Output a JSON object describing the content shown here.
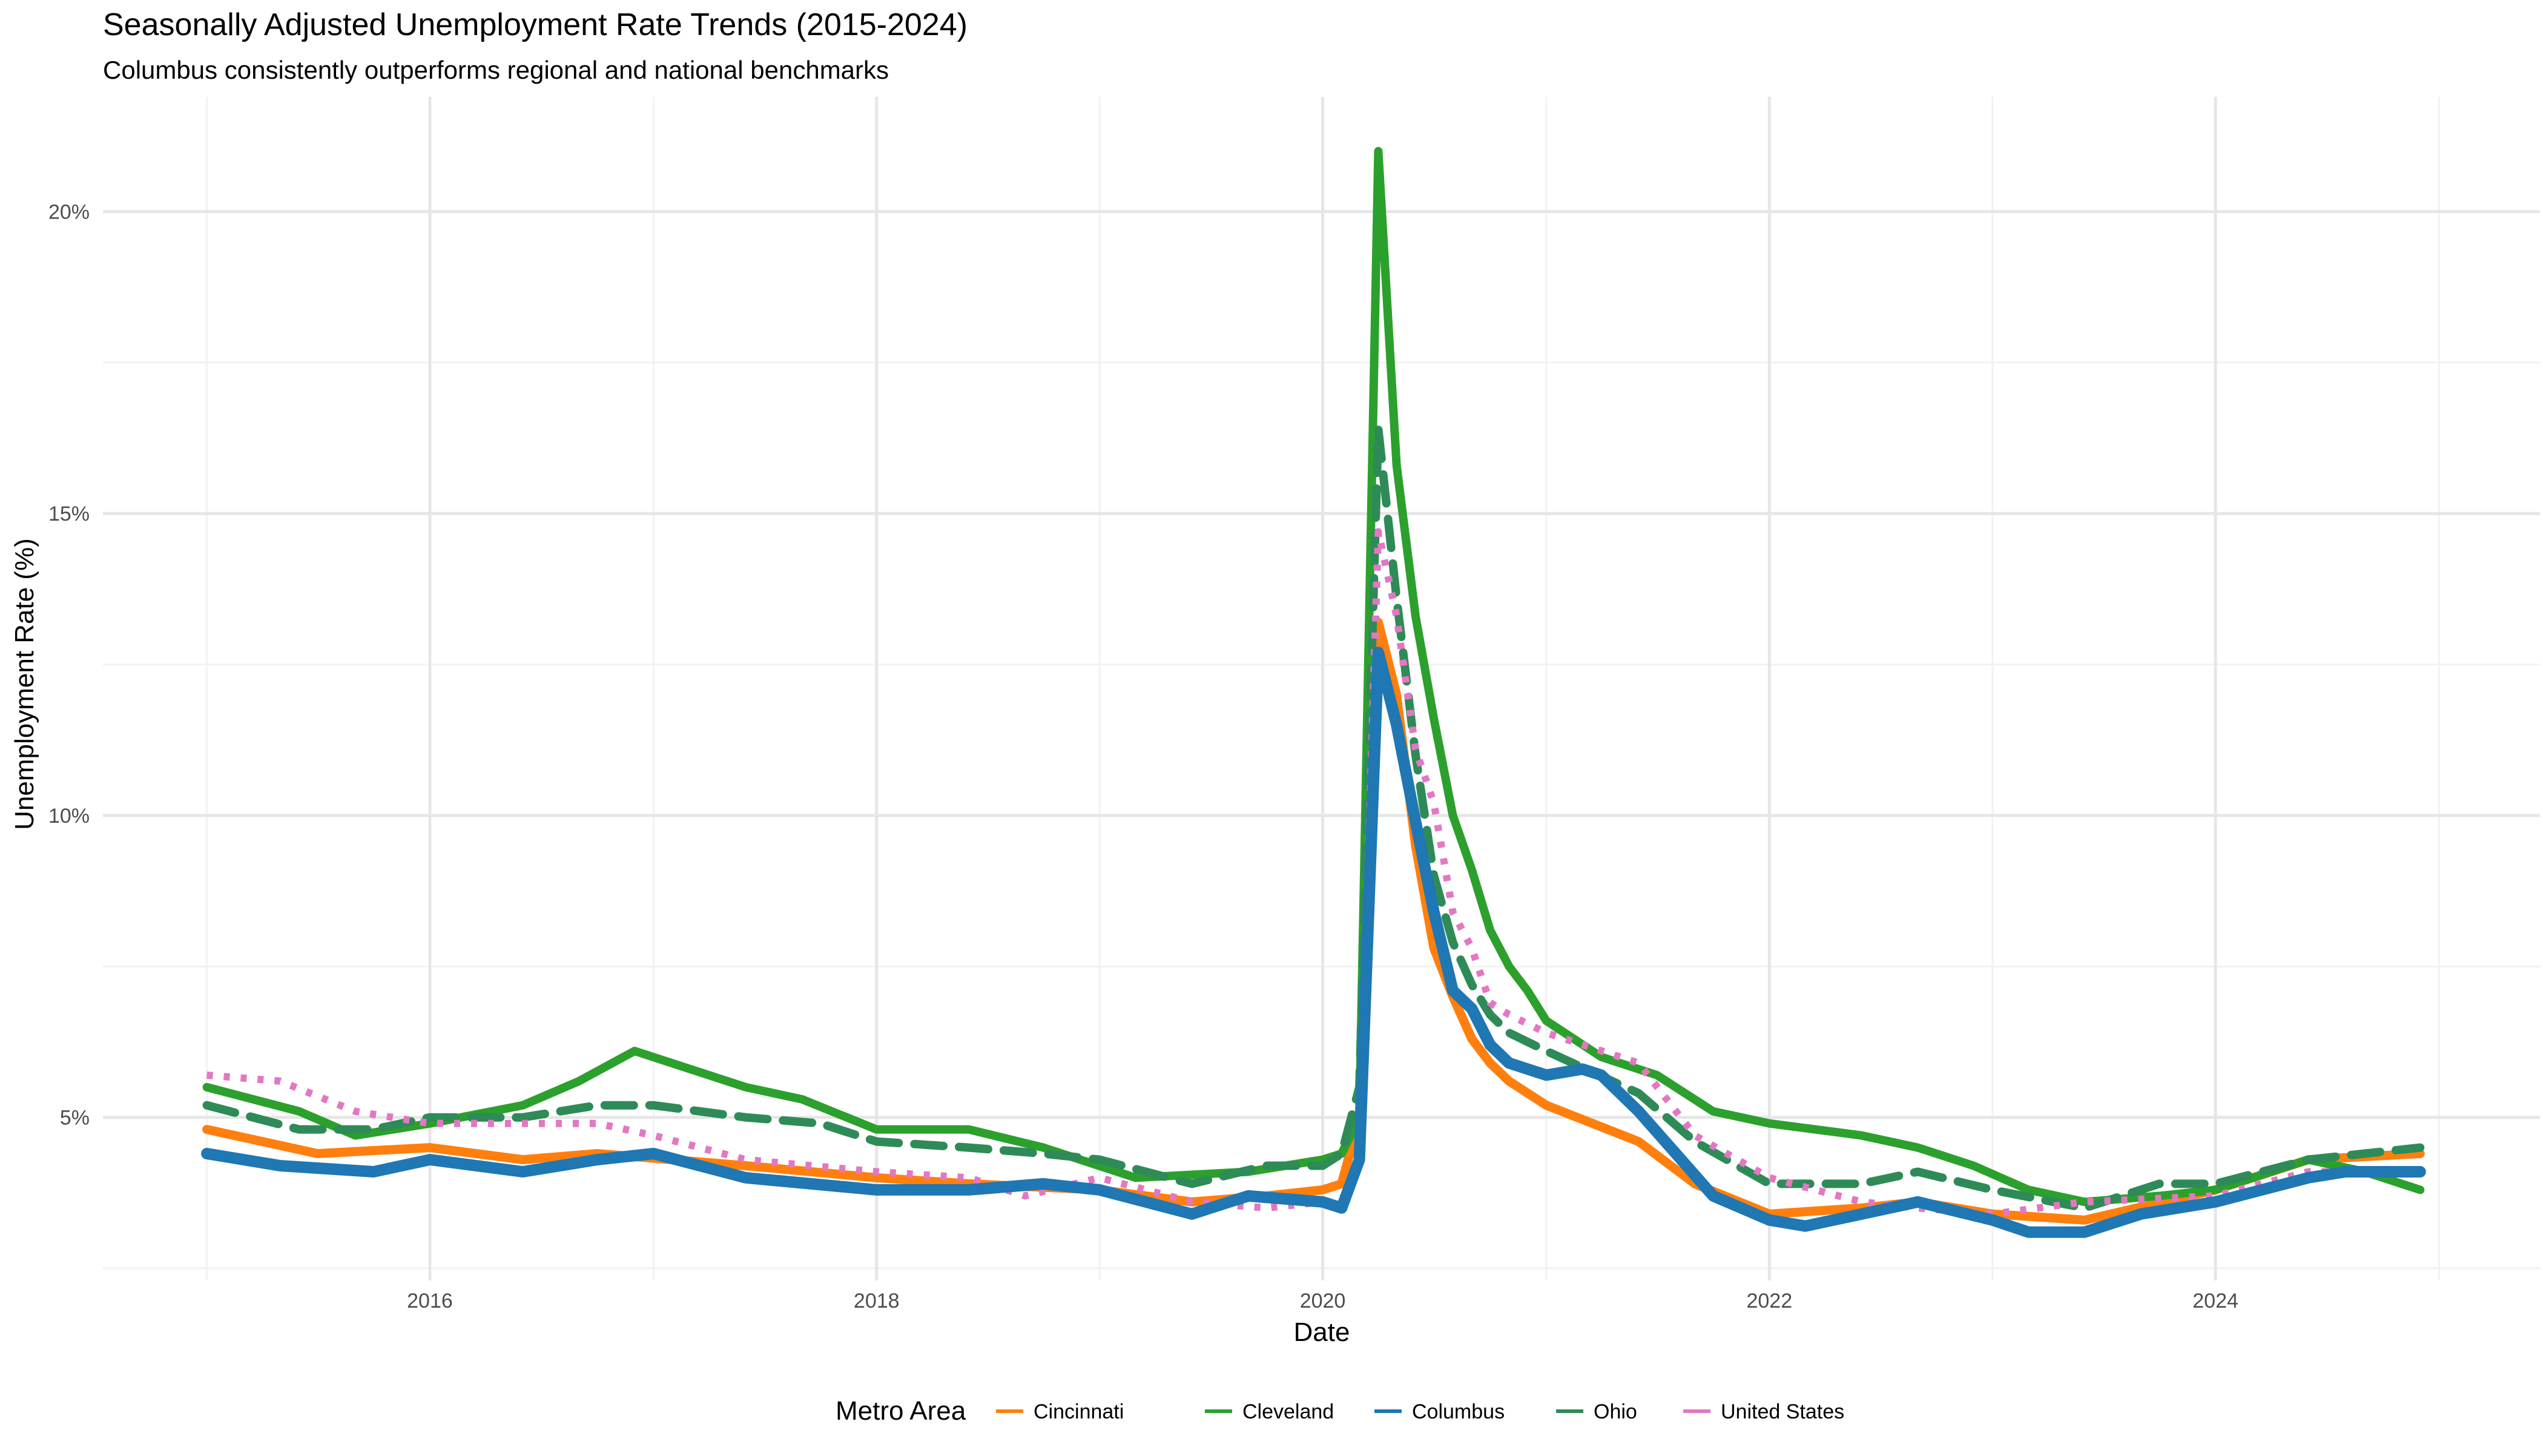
{
  "chart_data": {
    "type": "line",
    "title": "Seasonally Adjusted Unemployment Rate Trends (2015-2024)",
    "subtitle": "Columbus consistently outperforms regional and national benchmarks",
    "xlabel": "Date",
    "ylabel": "Unemployment Rate (%)",
    "x_ticks": [
      "2016",
      "2018",
      "2020",
      "2022",
      "2024"
    ],
    "x_tick_dates": [
      "2016-01-01",
      "2018-01-01",
      "2020-01-01",
      "2022-01-01",
      "2024-01-01"
    ],
    "y_ticks": [
      5,
      10,
      15,
      20
    ],
    "y_tick_labels": [
      "5%",
      "10%",
      "15%",
      "20%"
    ],
    "xlim": [
      "2014-07-15",
      "2025-06-15"
    ],
    "ylim": [
      2.3,
      21.9
    ],
    "grid": true,
    "legend": {
      "title": "Metro Area",
      "position": "bottom"
    },
    "series": [
      {
        "name": "Cincinnati",
        "color": "#FF7F0E",
        "dash": "solid",
        "points": [
          [
            "2015-01-01",
            4.8
          ],
          [
            "2015-07-01",
            4.4
          ],
          [
            "2016-01-01",
            4.5
          ],
          [
            "2016-06-01",
            4.3
          ],
          [
            "2016-10-01",
            4.4
          ],
          [
            "2017-06-01",
            4.2
          ],
          [
            "2018-01-01",
            4.0
          ],
          [
            "2018-06-01",
            3.9
          ],
          [
            "2019-01-01",
            3.8
          ],
          [
            "2019-06-01",
            3.6
          ],
          [
            "2019-10-01",
            3.7
          ],
          [
            "2020-01-01",
            3.8
          ],
          [
            "2020-02-01",
            3.9
          ],
          [
            "2020-03-01",
            5.0
          ],
          [
            "2020-04-01",
            13.2
          ],
          [
            "2020-05-01",
            12.0
          ],
          [
            "2020-06-01",
            9.5
          ],
          [
            "2020-07-01",
            7.8
          ],
          [
            "2020-08-01",
            7.0
          ],
          [
            "2020-09-01",
            6.3
          ],
          [
            "2020-10-01",
            5.9
          ],
          [
            "2020-11-01",
            5.6
          ],
          [
            "2021-01-01",
            5.2
          ],
          [
            "2021-06-01",
            4.6
          ],
          [
            "2021-09-01",
            3.9
          ],
          [
            "2022-01-01",
            3.4
          ],
          [
            "2022-06-01",
            3.5
          ],
          [
            "2022-09-01",
            3.6
          ],
          [
            "2023-01-01",
            3.4
          ],
          [
            "2023-06-01",
            3.3
          ],
          [
            "2024-01-01",
            3.8
          ],
          [
            "2024-06-01",
            4.3
          ],
          [
            "2024-12-01",
            4.4
          ]
        ]
      },
      {
        "name": "Cleveland",
        "color": "#2CA02C",
        "dash": "solid",
        "points": [
          [
            "2015-01-01",
            5.5
          ],
          [
            "2015-06-01",
            5.1
          ],
          [
            "2015-09-01",
            4.7
          ],
          [
            "2016-01-01",
            4.9
          ],
          [
            "2016-06-01",
            5.2
          ],
          [
            "2016-09-01",
            5.6
          ],
          [
            "2016-12-01",
            6.1
          ],
          [
            "2017-06-01",
            5.5
          ],
          [
            "2017-09-01",
            5.3
          ],
          [
            "2018-01-01",
            4.8
          ],
          [
            "2018-06-01",
            4.8
          ],
          [
            "2018-10-01",
            4.5
          ],
          [
            "2019-03-01",
            4.0
          ],
          [
            "2019-09-01",
            4.1
          ],
          [
            "2020-01-01",
            4.3
          ],
          [
            "2020-02-01",
            4.4
          ],
          [
            "2020-03-01",
            5.0
          ],
          [
            "2020-04-01",
            21.0
          ],
          [
            "2020-05-01",
            15.8
          ],
          [
            "2020-06-01",
            13.3
          ],
          [
            "2020-07-01",
            11.6
          ],
          [
            "2020-08-01",
            10.0
          ],
          [
            "2020-09-01",
            9.1
          ],
          [
            "2020-10-01",
            8.1
          ],
          [
            "2020-11-01",
            7.5
          ],
          [
            "2020-12-01",
            7.1
          ],
          [
            "2021-01-01",
            6.6
          ],
          [
            "2021-04-01",
            6.0
          ],
          [
            "2021-07-01",
            5.7
          ],
          [
            "2021-10-01",
            5.1
          ],
          [
            "2022-01-01",
            4.9
          ],
          [
            "2022-06-01",
            4.7
          ],
          [
            "2022-09-01",
            4.5
          ],
          [
            "2022-12-01",
            4.2
          ],
          [
            "2023-03-01",
            3.8
          ],
          [
            "2023-06-01",
            3.6
          ],
          [
            "2023-10-01",
            3.7
          ],
          [
            "2024-01-01",
            3.8
          ],
          [
            "2024-06-01",
            4.3
          ],
          [
            "2024-09-01",
            4.1
          ],
          [
            "2024-12-01",
            3.8
          ]
        ]
      },
      {
        "name": "Columbus",
        "color": "#1F77B4",
        "dash": "solid",
        "points": [
          [
            "2015-01-01",
            4.4
          ],
          [
            "2015-05-01",
            4.2
          ],
          [
            "2015-10-01",
            4.1
          ],
          [
            "2016-01-01",
            4.3
          ],
          [
            "2016-06-01",
            4.1
          ],
          [
            "2016-10-01",
            4.3
          ],
          [
            "2017-01-01",
            4.4
          ],
          [
            "2017-06-01",
            4.0
          ],
          [
            "2018-01-01",
            3.8
          ],
          [
            "2018-06-01",
            3.8
          ],
          [
            "2018-10-01",
            3.9
          ],
          [
            "2019-01-01",
            3.8
          ],
          [
            "2019-06-01",
            3.4
          ],
          [
            "2019-09-01",
            3.7
          ],
          [
            "2020-01-01",
            3.6
          ],
          [
            "2020-02-01",
            3.5
          ],
          [
            "2020-03-01",
            4.3
          ],
          [
            "2020-04-01",
            12.7
          ],
          [
            "2020-05-01",
            11.5
          ],
          [
            "2020-06-01",
            9.9
          ],
          [
            "2020-07-01",
            8.4
          ],
          [
            "2020-08-01",
            7.1
          ],
          [
            "2020-09-01",
            6.8
          ],
          [
            "2020-10-01",
            6.2
          ],
          [
            "2020-11-01",
            5.9
          ],
          [
            "2021-01-01",
            5.7
          ],
          [
            "2021-03-01",
            5.8
          ],
          [
            "2021-04-01",
            5.7
          ],
          [
            "2021-06-01",
            5.1
          ],
          [
            "2021-08-01",
            4.4
          ],
          [
            "2021-10-01",
            3.7
          ],
          [
            "2022-01-01",
            3.3
          ],
          [
            "2022-03-01",
            3.2
          ],
          [
            "2022-06-01",
            3.4
          ],
          [
            "2022-09-01",
            3.6
          ],
          [
            "2023-01-01",
            3.3
          ],
          [
            "2023-03-01",
            3.1
          ],
          [
            "2023-06-01",
            3.1
          ],
          [
            "2023-09-01",
            3.4
          ],
          [
            "2024-01-01",
            3.6
          ],
          [
            "2024-06-01",
            4.0
          ],
          [
            "2024-08-01",
            4.1
          ],
          [
            "2024-12-01",
            4.1
          ]
        ]
      },
      {
        "name": "Ohio",
        "color": "#2E8B57",
        "dash": "dashed",
        "points": [
          [
            "2015-01-01",
            5.2
          ],
          [
            "2015-06-01",
            4.8
          ],
          [
            "2015-10-01",
            4.8
          ],
          [
            "2016-01-01",
            5.0
          ],
          [
            "2016-06-01",
            5.0
          ],
          [
            "2016-10-01",
            5.2
          ],
          [
            "2017-01-01",
            5.2
          ],
          [
            "2017-06-01",
            5.0
          ],
          [
            "2017-10-01",
            4.9
          ],
          [
            "2018-01-01",
            4.6
          ],
          [
            "2018-06-01",
            4.5
          ],
          [
            "2018-10-01",
            4.4
          ],
          [
            "2019-01-01",
            4.3
          ],
          [
            "2019-06-01",
            3.9
          ],
          [
            "2019-10-01",
            4.2
          ],
          [
            "2020-01-01",
            4.2
          ],
          [
            "2020-02-01",
            4.4
          ],
          [
            "2020-03-01",
            5.5
          ],
          [
            "2020-04-01",
            16.4
          ],
          [
            "2020-05-01",
            13.6
          ],
          [
            "2020-06-01",
            11.0
          ],
          [
            "2020-07-01",
            9.0
          ],
          [
            "2020-08-01",
            7.9
          ],
          [
            "2020-09-01",
            7.2
          ],
          [
            "2020-10-01",
            6.7
          ],
          [
            "2020-11-01",
            6.4
          ],
          [
            "2021-01-01",
            6.1
          ],
          [
            "2021-06-01",
            5.4
          ],
          [
            "2021-09-01",
            4.6
          ],
          [
            "2022-01-01",
            3.9
          ],
          [
            "2022-06-01",
            3.9
          ],
          [
            "2022-09-01",
            4.1
          ],
          [
            "2023-01-01",
            3.8
          ],
          [
            "2023-06-01",
            3.5
          ],
          [
            "2023-10-01",
            3.9
          ],
          [
            "2024-01-01",
            3.9
          ],
          [
            "2024-06-01",
            4.3
          ],
          [
            "2024-12-01",
            4.5
          ]
        ]
      },
      {
        "name": "United States",
        "color": "#E377C2",
        "dash": "dotted",
        "points": [
          [
            "2015-01-01",
            5.7
          ],
          [
            "2015-05-01",
            5.6
          ],
          [
            "2015-09-01",
            5.1
          ],
          [
            "2016-01-01",
            4.9
          ],
          [
            "2016-06-01",
            4.9
          ],
          [
            "2016-10-01",
            4.9
          ],
          [
            "2017-01-01",
            4.7
          ],
          [
            "2017-06-01",
            4.3
          ],
          [
            "2018-01-01",
            4.1
          ],
          [
            "2018-06-01",
            4.0
          ],
          [
            "2018-09-01",
            3.7
          ],
          [
            "2019-01-01",
            4.0
          ],
          [
            "2019-06-01",
            3.6
          ],
          [
            "2019-10-01",
            3.5
          ],
          [
            "2020-01-01",
            3.6
          ],
          [
            "2020-02-01",
            3.5
          ],
          [
            "2020-03-01",
            4.4
          ],
          [
            "2020-04-01",
            14.7
          ],
          [
            "2020-05-01",
            13.3
          ],
          [
            "2020-06-01",
            11.1
          ],
          [
            "2020-07-01",
            10.2
          ],
          [
            "2020-08-01",
            8.4
          ],
          [
            "2020-09-01",
            7.8
          ],
          [
            "2020-10-01",
            6.9
          ],
          [
            "2020-11-01",
            6.7
          ],
          [
            "2021-01-01",
            6.4
          ],
          [
            "2021-06-01",
            5.9
          ],
          [
            "2021-09-01",
            4.7
          ],
          [
            "2022-01-01",
            4.0
          ],
          [
            "2022-06-01",
            3.6
          ],
          [
            "2022-09-01",
            3.5
          ],
          [
            "2023-01-01",
            3.4
          ],
          [
            "2023-06-01",
            3.6
          ],
          [
            "2024-01-01",
            3.7
          ],
          [
            "2024-06-01",
            4.1
          ],
          [
            "2024-12-01",
            4.1
          ]
        ]
      }
    ]
  }
}
